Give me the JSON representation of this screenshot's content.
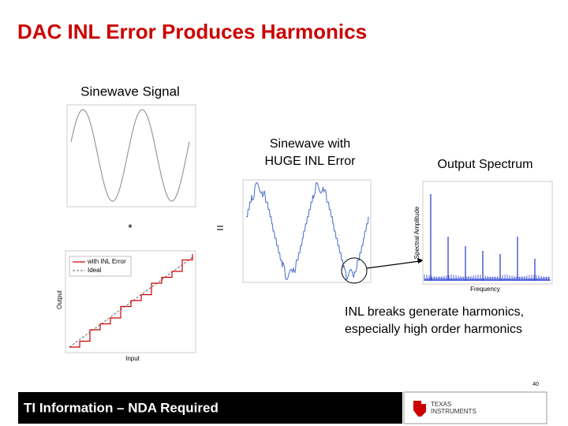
{
  "title": "DAC INL Error Produces Harmonics",
  "panels": {
    "sinewave": {
      "label": "Sinewave Signal"
    },
    "inl_sinewave": {
      "label_lines": [
        "Sinewave with",
        "HUGE INL Error"
      ]
    },
    "spectrum": {
      "label": "Output Spectrum",
      "y_axis": "Spectral Amplitude",
      "x_axis": "Frequency"
    },
    "transfer": {
      "y_axis": "Output",
      "x_axis": "Input",
      "legend": [
        "with INL Error",
        "Ideal"
      ]
    }
  },
  "operators": [
    "*",
    "="
  ],
  "note_lines": [
    "INL breaks generate harmonics,",
    "especially high order harmonics"
  ],
  "page_number": "40",
  "footer": "TI Information – NDA Required",
  "logo": [
    "TEXAS",
    "INSTRUMENTS"
  ]
}
